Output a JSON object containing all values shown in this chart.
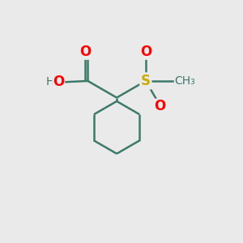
{
  "background_color": "#eaeaea",
  "bond_color": "#3d7a6a",
  "bond_width": 1.8,
  "fig_size": [
    3.0,
    3.0
  ],
  "dpi": 100,
  "atom_colors": {
    "O": "#ff0000",
    "S": "#ccaa00",
    "H": "#3d7a6a",
    "C": "#3d7a6a"
  },
  "font_size": 12,
  "font_size_small": 10,
  "font_size_ch3": 10
}
